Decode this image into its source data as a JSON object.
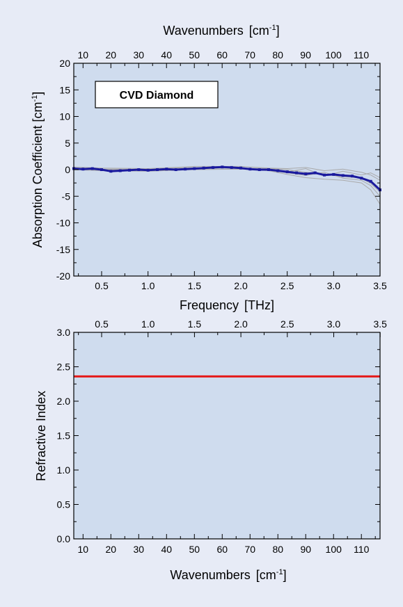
{
  "chart_data": [
    {
      "type": "line",
      "inset_label": "CVD Diamond",
      "xlabel": "Frequency",
      "xlabel_unit": "[THz]",
      "x2label": "Wavenumbers",
      "x2label_unit_base": "[cm",
      "x2label_unit_exp": "-1",
      "x2label_unit_close": "]",
      "ylabel": "Absorption Coefficient [cm",
      "ylabel_exp": "-1",
      "ylabel_close": "]",
      "xlim": [
        0.2,
        3.5
      ],
      "ylim": [
        -20,
        20
      ],
      "x_ticks": [
        "0.5",
        "1.0",
        "1.5",
        "2.0",
        "2.5",
        "3.0",
        "3.5"
      ],
      "x_tick_values": [
        0.5,
        1.0,
        1.5,
        2.0,
        2.5,
        3.0,
        3.5
      ],
      "x2_ticks": [
        "10",
        "20",
        "30",
        "40",
        "50",
        "60",
        "70",
        "80",
        "90",
        "100",
        "110"
      ],
      "x2_tick_values": [
        10,
        20,
        30,
        40,
        50,
        60,
        70,
        80,
        90,
        100,
        110
      ],
      "y_ticks": [
        "-20",
        "-15",
        "-10",
        "-5",
        "0",
        "5",
        "10",
        "15",
        "20"
      ],
      "y_tick_values": [
        -20,
        -15,
        -10,
        -5,
        0,
        5,
        10,
        15,
        20
      ],
      "grid": false,
      "colors": {
        "plot_bg": "#cfdcee",
        "mean": "#1a1a9e",
        "individual": "#a9a9a9"
      },
      "series": [
        {
          "role": "mean",
          "x": [
            0.2,
            0.3,
            0.4,
            0.5,
            0.6,
            0.7,
            0.8,
            0.9,
            1.0,
            1.1,
            1.2,
            1.3,
            1.4,
            1.5,
            1.6,
            1.7,
            1.8,
            1.9,
            2.0,
            2.1,
            2.2,
            2.3,
            2.4,
            2.5,
            2.6,
            2.7,
            2.8,
            2.9,
            3.0,
            3.1,
            3.2,
            3.3,
            3.4,
            3.5
          ],
          "y": [
            0.2,
            0.1,
            0.2,
            0.0,
            -0.3,
            -0.2,
            -0.1,
            0.0,
            -0.1,
            0.0,
            0.1,
            0.0,
            0.1,
            0.2,
            0.3,
            0.4,
            0.5,
            0.4,
            0.3,
            0.1,
            0.0,
            0.0,
            -0.2,
            -0.4,
            -0.6,
            -0.8,
            -0.6,
            -1.0,
            -0.9,
            -1.1,
            -1.2,
            -1.6,
            -2.2,
            -3.8
          ]
        },
        {
          "role": "individual",
          "x": [
            0.2,
            0.5,
            1.0,
            1.5,
            2.0,
            2.3,
            2.5,
            2.7,
            2.9,
            3.1,
            3.3,
            3.4,
            3.5
          ],
          "y": [
            0.5,
            0.3,
            0.2,
            0.6,
            0.6,
            0.3,
            0.2,
            0.4,
            -0.2,
            0.1,
            -0.5,
            -1.0,
            -2.0
          ]
        },
        {
          "role": "individual",
          "x": [
            0.2,
            0.5,
            1.0,
            1.5,
            2.0,
            2.3,
            2.5,
            2.7,
            2.9,
            3.1,
            3.3,
            3.4,
            3.5
          ],
          "y": [
            0.0,
            -0.2,
            -0.3,
            0.0,
            0.1,
            -0.2,
            -0.9,
            -1.5,
            -1.8,
            -2.0,
            -2.5,
            -3.8,
            -6.5
          ]
        },
        {
          "role": "individual",
          "x": [
            0.2,
            0.5,
            1.0,
            1.5,
            2.0,
            2.3,
            2.5,
            2.7,
            2.9,
            3.1,
            3.3,
            3.4,
            3.5
          ],
          "y": [
            0.3,
            0.1,
            0.1,
            0.4,
            0.2,
            0.0,
            -0.4,
            0.2,
            -1.2,
            -0.3,
            -1.0,
            -0.6,
            -1.5
          ]
        },
        {
          "role": "individual",
          "x": [
            0.2,
            0.5,
            1.0,
            1.5,
            2.0,
            2.3,
            2.5,
            2.7,
            2.9,
            3.1,
            3.3,
            3.4,
            3.5
          ],
          "y": [
            0.1,
            -0.1,
            -0.2,
            0.1,
            0.4,
            -0.1,
            -0.6,
            -1.1,
            -0.5,
            -1.6,
            -2.0,
            -3.0,
            -5.0
          ]
        },
        {
          "role": "individual",
          "x": [
            0.2,
            0.5,
            1.0,
            1.5,
            2.0,
            2.3,
            2.5,
            2.7,
            2.9,
            3.1,
            3.3,
            3.4,
            3.5
          ],
          "y": [
            0.2,
            0.0,
            0.0,
            0.3,
            0.3,
            0.2,
            0.0,
            -0.5,
            -0.8,
            -1.3,
            -1.6,
            -2.6,
            -4.2
          ]
        }
      ]
    },
    {
      "type": "line",
      "xlabel": "Wavenumbers",
      "xlabel_unit_base": "[cm",
      "xlabel_unit_exp": "-1",
      "xlabel_unit_close": "]",
      "x2label": "",
      "ylabel": "Refractive Index",
      "xlim": [
        6.67,
        116.7
      ],
      "ylim": [
        0.0,
        3.0
      ],
      "x_ticks": [
        "10",
        "20",
        "30",
        "40",
        "50",
        "60",
        "70",
        "80",
        "90",
        "100",
        "110"
      ],
      "x_tick_values": [
        10,
        20,
        30,
        40,
        50,
        60,
        70,
        80,
        90,
        100,
        110
      ],
      "x2_ticks": [
        "0.5",
        "1.0",
        "1.5",
        "2.0",
        "2.5",
        "3.0",
        "3.5"
      ],
      "x2_tick_values": [
        0.5,
        1.0,
        1.5,
        2.0,
        2.5,
        3.0,
        3.5
      ],
      "y_ticks": [
        "0.0",
        "0.5",
        "1.0",
        "1.5",
        "2.0",
        "2.5",
        "3.0"
      ],
      "y_tick_values": [
        0.0,
        0.5,
        1.0,
        1.5,
        2.0,
        2.5,
        3.0
      ],
      "grid": false,
      "colors": {
        "plot_bg": "#cfdcee",
        "line": "#e41a1a"
      },
      "series": [
        {
          "role": "refractive-index",
          "x": [
            6.67,
            116.7
          ],
          "y": [
            2.36,
            2.36
          ]
        }
      ]
    }
  ]
}
